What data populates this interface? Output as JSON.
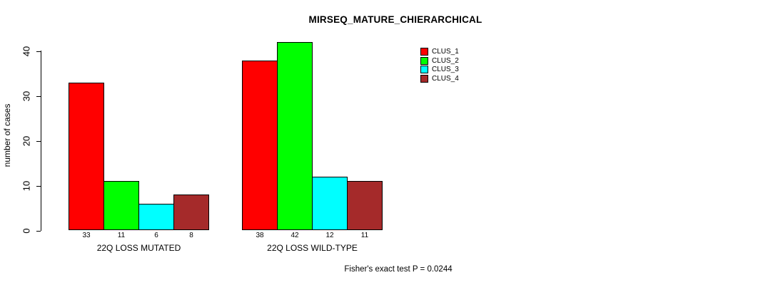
{
  "chart_data": {
    "type": "bar",
    "title": "MIRSEQ_MATURE_CHIERARCHICAL",
    "categories": [
      "22Q LOSS MUTATED",
      "22Q LOSS WILD-TYPE"
    ],
    "series": [
      {
        "name": "CLUS_1",
        "color": "#FF0000",
        "values": [
          33,
          38
        ]
      },
      {
        "name": "CLUS_2",
        "color": "#00FF00",
        "values": [
          11,
          42
        ]
      },
      {
        "name": "CLUS_3",
        "color": "#00FFFF",
        "values": [
          6,
          12
        ]
      },
      {
        "name": "CLUS_4",
        "color": "#A52A2A",
        "values": [
          8,
          11
        ]
      }
    ],
    "xlabel": "",
    "ylabel": "number of cases",
    "ylim": [
      0,
      42
    ],
    "yticks": [
      0,
      10,
      20,
      30,
      40
    ],
    "bar_value_labels": [
      [
        "33",
        "11",
        "6",
        "8"
      ],
      [
        "38",
        "42",
        "12",
        "11"
      ]
    ],
    "grid": false,
    "legend_position": "top-right",
    "legend_box": false,
    "annotation": "Fisher's exact test P = 0.0244",
    "bar_border_color": "#000000",
    "background_color": "#FFFFFF"
  }
}
